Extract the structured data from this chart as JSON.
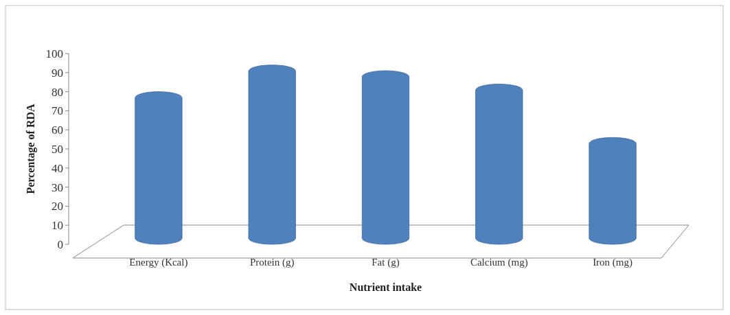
{
  "chart_data": {
    "type": "bar",
    "xlabel": "Nutrient intake",
    "ylabel": "Percentage of RDA",
    "categories": [
      "Energy (Kcal)",
      "Protein  (g)",
      "Fat (g)",
      "Calcium (mg)",
      "Iron (mg)"
    ],
    "values": [
      80,
      94,
      91,
      84,
      56
    ],
    "color": "#4f81bd",
    "ylim": [
      0,
      100
    ],
    "yticks": [
      0,
      10,
      20,
      30,
      40,
      50,
      60,
      70,
      80,
      90,
      100
    ],
    "grid": false
  }
}
